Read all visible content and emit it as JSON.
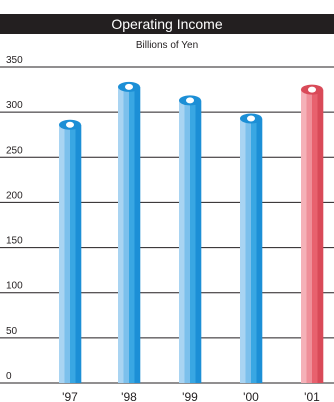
{
  "chart_data": {
    "type": "bar",
    "title": "Operating Income",
    "subtitle": "Billions of Yen",
    "categories": [
      "'97",
      "'98",
      "'99",
      "'00",
      "'01"
    ],
    "values": [
      286,
      328,
      313,
      293,
      325
    ],
    "ylim": [
      0,
      350
    ],
    "yticks": [
      0,
      50,
      100,
      150,
      200,
      250,
      300,
      350
    ],
    "grid": true,
    "colors": {
      "bar": [
        "#a9d4f2",
        "#7cc0ec",
        "#39a7e3",
        "#1c8fd6"
      ],
      "highlight": [
        "#f5b1b8",
        "#ef8f99",
        "#e8616e",
        "#d94a58"
      ],
      "top": "#ffffff"
    },
    "highlight_index": 4
  }
}
